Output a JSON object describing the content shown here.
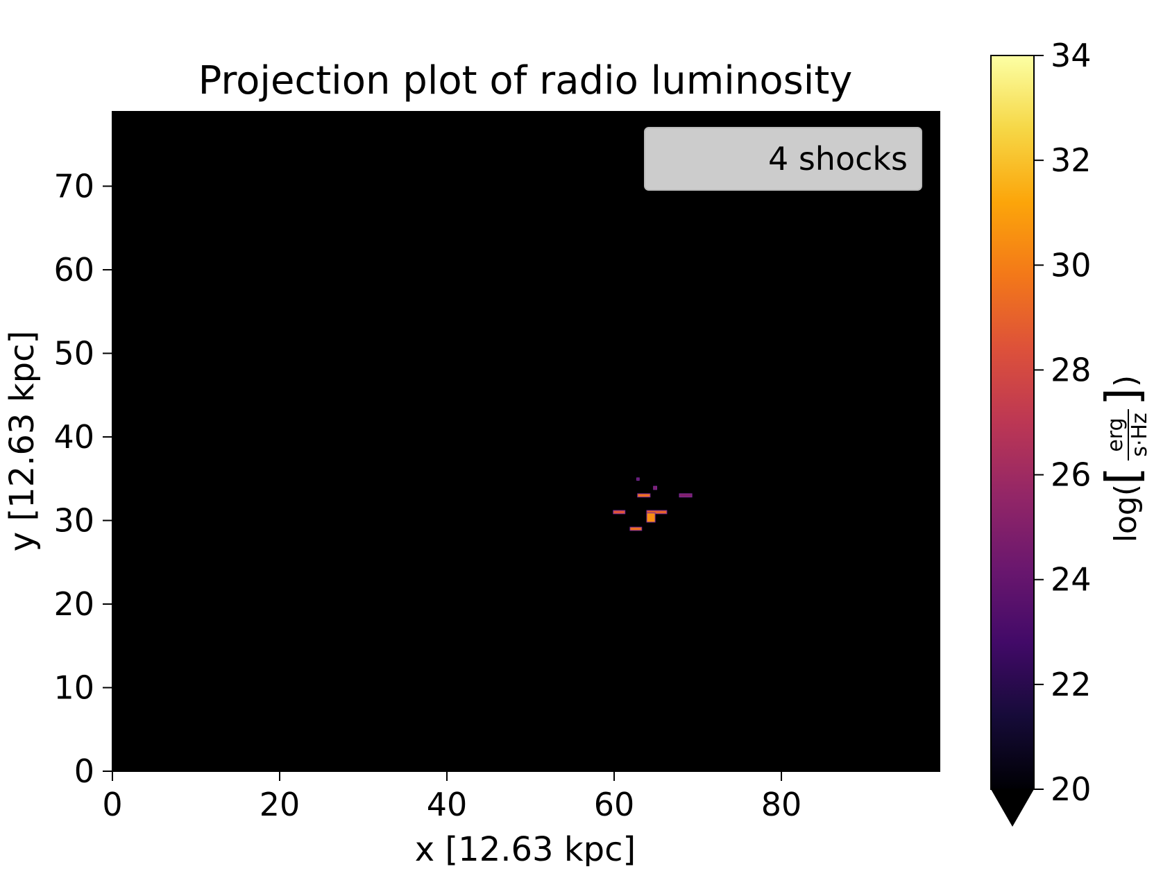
{
  "chart_data": {
    "type": "heatmap",
    "title": "Projection plot of radio luminosity",
    "xlabel": "x [12.63 kpc]",
    "ylabel": "y [12.63 kpc]",
    "xlim": [
      0,
      99
    ],
    "ylim": [
      0,
      79
    ],
    "xticks": [
      0,
      20,
      40,
      60,
      80
    ],
    "yticks": [
      0,
      10,
      20,
      30,
      40,
      50,
      60,
      70
    ],
    "legend": {
      "text": "4 shocks",
      "placement": "top-right"
    },
    "background_color": "#000000",
    "colormap": "inferno",
    "colorbar": {
      "label_prefix": "log(",
      "label_units_top": "erg",
      "label_units_bottom": "s·Hz",
      "label_suffix": ")",
      "range": [
        20,
        34
      ],
      "ticks": [
        20,
        22,
        24,
        26,
        28,
        30,
        32,
        34
      ],
      "extend": "min"
    },
    "features": [
      {
        "x0": 62.7,
        "x1": 63.0,
        "y0": 34.8,
        "y1": 35.1,
        "value": 24
      },
      {
        "x0": 64.7,
        "x1": 65.1,
        "y0": 33.7,
        "y1": 34.1,
        "value": 25
      },
      {
        "x0": 62.8,
        "x1": 64.3,
        "y0": 32.8,
        "y1": 33.2,
        "value": 29.5
      },
      {
        "x0": 67.8,
        "x1": 69.3,
        "y0": 32.8,
        "y1": 33.2,
        "value": 25
      },
      {
        "x0": 59.9,
        "x1": 61.3,
        "y0": 30.8,
        "y1": 31.2,
        "value": 28.5
      },
      {
        "x0": 63.9,
        "x1": 66.3,
        "y0": 30.8,
        "y1": 31.2,
        "value": 29
      },
      {
        "x0": 63.9,
        "x1": 64.9,
        "y0": 29.8,
        "y1": 30.9,
        "value": 30.5
      },
      {
        "x0": 61.9,
        "x1": 63.3,
        "y0": 28.8,
        "y1": 29.2,
        "value": 29.5
      }
    ]
  }
}
